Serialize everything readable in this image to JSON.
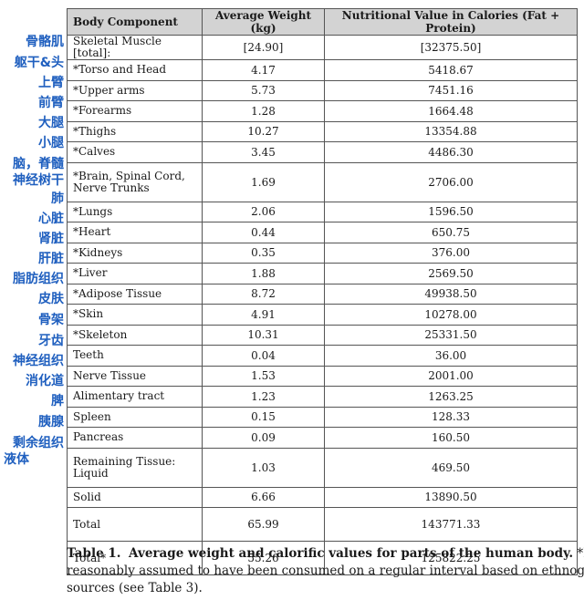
{
  "table": {
    "headers": [
      "Body Component",
      "Average Weight (kg)",
      "Nutritional Value in Calories (Fat + Protein)"
    ],
    "rows": [
      {
        "component": "Skeletal Muscle [total]:",
        "weight": "[24.90]",
        "calories": "[32375.50]"
      },
      {
        "component": "*Torso and Head",
        "weight": "4.17",
        "calories": "5418.67"
      },
      {
        "component": "*Upper arms",
        "weight": "5.73",
        "calories": "7451.16"
      },
      {
        "component": "*Forearms",
        "weight": "1.28",
        "calories": "1664.48"
      },
      {
        "component": "*Thighs",
        "weight": "10.27",
        "calories": "13354.88"
      },
      {
        "component": "*Calves",
        "weight": "3.45",
        "calories": "4486.30"
      },
      {
        "component": "*Brain, Spinal Cord, Nerve Trunks",
        "weight": "1.69",
        "calories": "2706.00"
      },
      {
        "component": "*Lungs",
        "weight": "2.06",
        "calories": "1596.50"
      },
      {
        "component": "*Heart",
        "weight": "0.44",
        "calories": "650.75"
      },
      {
        "component": "*Kidneys",
        "weight": "0.35",
        "calories": "376.00"
      },
      {
        "component": "*Liver",
        "weight": "1.88",
        "calories": "2569.50"
      },
      {
        "component": "*Adipose Tissue",
        "weight": "8.72",
        "calories": "49938.50"
      },
      {
        "component": "*Skin",
        "weight": "4.91",
        "calories": "10278.00"
      },
      {
        "component": "*Skeleton",
        "weight": "10.31",
        "calories": "25331.50"
      },
      {
        "component": "Teeth",
        "weight": "0.04",
        "calories": "36.00"
      },
      {
        "component": "Nerve Tissue",
        "weight": "1.53",
        "calories": "2001.00"
      },
      {
        "component": "Alimentary tract",
        "weight": "1.23",
        "calories": "1263.25"
      },
      {
        "component": "Spleen",
        "weight": "0.15",
        "calories": "128.33"
      },
      {
        "component": "Pancreas",
        "weight": "0.09",
        "calories": "160.50"
      },
      {
        "component": "Remaining Tissue: Liquid",
        "weight": "1.03",
        "calories": "469.50"
      },
      {
        "component": "Solid",
        "weight": "6.66",
        "calories": "13890.50"
      },
      {
        "component": "Total",
        "weight": "65.99",
        "calories": "143771.33"
      },
      {
        "component": "Total*",
        "weight": "55.26",
        "calories": "125822.25"
      }
    ]
  },
  "annotations": [
    "骨骼肌",
    "躯干&头",
    "上臂",
    "前臂",
    "大腿",
    "小腿",
    "脑，脊髓",
    "神经树干",
    "肺",
    "心脏",
    "肾脏",
    "肝脏",
    "脂肪组织",
    "皮肤",
    "骨架",
    "牙齿",
    "神经组织",
    "消化道",
    "脾",
    "胰腺",
    "剩余组织",
    "液体"
  ],
  "caption": {
    "label": "Table 1.",
    "title": "Average weight and calorific values for parts of the human body.",
    "line1_rest": " *Part",
    "line2": "reasonably assumed to have been consumed on a regular interval based on ethnogr",
    "line3": "sources (see Table 3)."
  }
}
